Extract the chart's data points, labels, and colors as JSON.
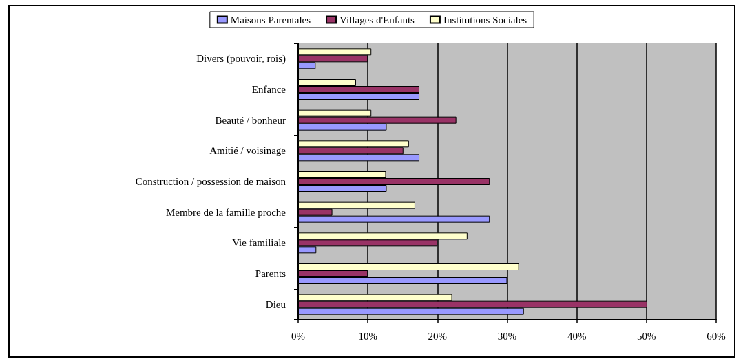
{
  "chart_data": {
    "type": "bar",
    "orientation": "horizontal",
    "categories": [
      "Divers (pouvoir, rois)",
      "Enfance",
      "Beauté / bonheur",
      "Amitié / voisinage",
      "Construction / possession de maison",
      "Membre de la famille proche",
      "Vie familiale",
      "Parents",
      "Dieu"
    ],
    "series": [
      {
        "name": "Maisons Parentales",
        "color": "#9999ff",
        "values": [
          2.5,
          17.4,
          12.7,
          17.4,
          12.7,
          27.5,
          2.6,
          30.0,
          32.4
        ]
      },
      {
        "name": "Villages d'Enfants",
        "color": "#993366",
        "values": [
          10.0,
          17.4,
          22.7,
          15.1,
          27.5,
          4.9,
          20.0,
          10.0,
          50.1
        ]
      },
      {
        "name": "Institutions Sociales",
        "color": "#ffffcc",
        "values": [
          10.5,
          8.3,
          10.5,
          15.9,
          12.6,
          16.8,
          24.3,
          31.7,
          22.1
        ]
      }
    ],
    "xlim": [
      0,
      60
    ],
    "xticks": [
      {
        "value": 0,
        "label": "0%"
      },
      {
        "value": 10,
        "label": "10%"
      },
      {
        "value": 20,
        "label": "20%"
      },
      {
        "value": 30,
        "label": "30%"
      },
      {
        "value": 40,
        "label": "40%"
      },
      {
        "value": 50,
        "label": "50%"
      },
      {
        "value": 60,
        "label": "60%"
      }
    ],
    "grid": "x",
    "legend": "top"
  }
}
